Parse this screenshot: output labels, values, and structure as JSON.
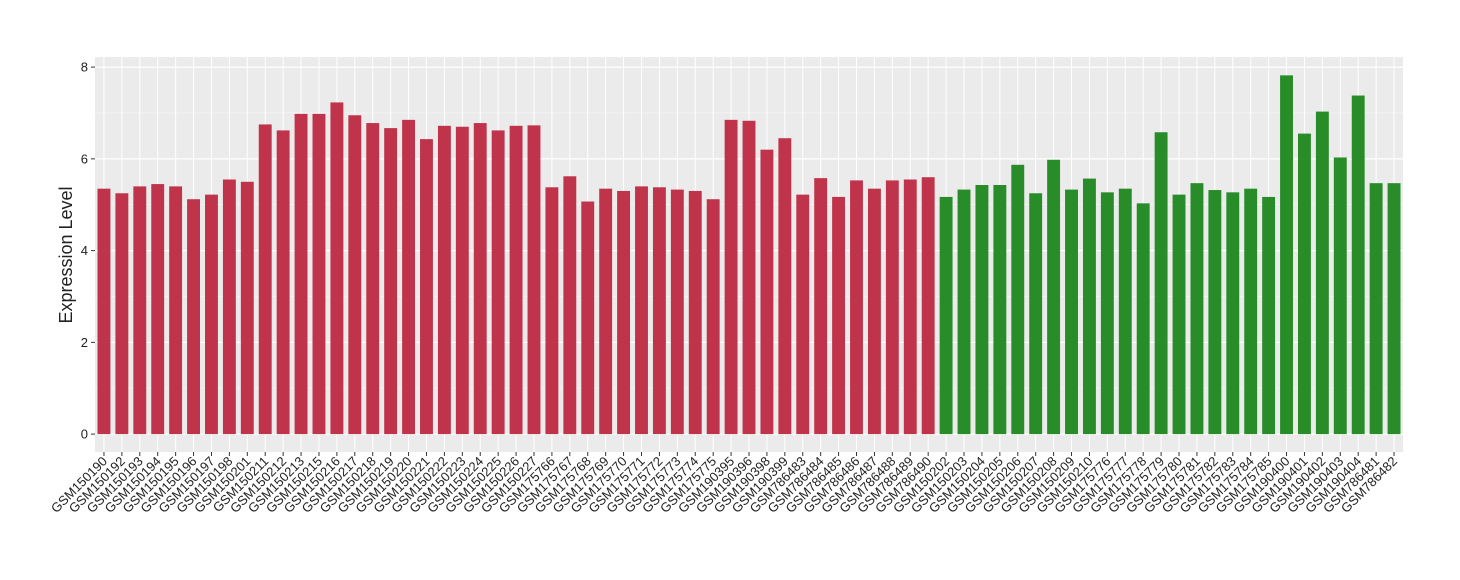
{
  "chart_data": {
    "type": "bar",
    "y_label": "Expression Level",
    "categories": [
      "GSM150190",
      "GSM150192",
      "GSM150193",
      "GSM150194",
      "GSM150195",
      "GSM150196",
      "GSM150197",
      "GSM150198",
      "GSM150201",
      "GSM150211",
      "GSM150212",
      "GSM150213",
      "GSM150215",
      "GSM150216",
      "GSM150217",
      "GSM150218",
      "GSM150219",
      "GSM150220",
      "GSM150221",
      "GSM150222",
      "GSM150223",
      "GSM150224",
      "GSM150225",
      "GSM150226",
      "GSM150227",
      "GSM175766",
      "GSM175767",
      "GSM175768",
      "GSM175769",
      "GSM175770",
      "GSM175771",
      "GSM175772",
      "GSM175773",
      "GSM175774",
      "GSM175775",
      "GSM190395",
      "GSM190396",
      "GSM190398",
      "GSM190399",
      "GSM786483",
      "GSM786484",
      "GSM786485",
      "GSM786486",
      "GSM786487",
      "GSM786488",
      "GSM786489",
      "GSM786490",
      "GSM150202",
      "GSM150203",
      "GSM150204",
      "GSM150205",
      "GSM150206",
      "GSM150207",
      "GSM150208",
      "GSM150209",
      "GSM150210",
      "GSM175776",
      "GSM175777",
      "GSM175778",
      "GSM175779",
      "GSM175780",
      "GSM175781",
      "GSM175782",
      "GSM175783",
      "GSM175784",
      "GSM175785",
      "GSM190400",
      "GSM190401",
      "GSM190402",
      "GSM190403",
      "GSM190404",
      "GSM786481",
      "GSM786482"
    ],
    "values": [
      5.35,
      5.25,
      5.4,
      5.45,
      5.4,
      5.12,
      5.22,
      5.55,
      5.5,
      6.75,
      6.62,
      6.98,
      6.98,
      7.23,
      6.95,
      6.78,
      6.67,
      6.85,
      6.43,
      6.72,
      6.7,
      6.78,
      6.62,
      6.72,
      6.73,
      5.38,
      5.62,
      5.07,
      5.35,
      5.3,
      5.4,
      5.38,
      5.33,
      5.3,
      5.12,
      6.85,
      6.83,
      6.2,
      6.45,
      5.22,
      5.58,
      5.17,
      5.53,
      5.35,
      5.53,
      5.55,
      5.6,
      5.17,
      5.33,
      5.43,
      5.43,
      5.87,
      5.25,
      5.98,
      5.33,
      5.57,
      5.27,
      5.35,
      5.03,
      6.58,
      5.22,
      5.47,
      5.32,
      5.27,
      5.35,
      5.17,
      7.82,
      6.55,
      7.03,
      6.03,
      7.38,
      5.47,
      5.47
    ],
    "colors": [
      "#c0344b",
      "#c0344b",
      "#c0344b",
      "#c0344b",
      "#c0344b",
      "#c0344b",
      "#c0344b",
      "#c0344b",
      "#c0344b",
      "#c0344b",
      "#c0344b",
      "#c0344b",
      "#c0344b",
      "#c0344b",
      "#c0344b",
      "#c0344b",
      "#c0344b",
      "#c0344b",
      "#c0344b",
      "#c0344b",
      "#c0344b",
      "#c0344b",
      "#c0344b",
      "#c0344b",
      "#c0344b",
      "#c0344b",
      "#c0344b",
      "#c0344b",
      "#c0344b",
      "#c0344b",
      "#c0344b",
      "#c0344b",
      "#c0344b",
      "#c0344b",
      "#c0344b",
      "#c0344b",
      "#c0344b",
      "#c0344b",
      "#c0344b",
      "#c0344b",
      "#c0344b",
      "#c0344b",
      "#c0344b",
      "#c0344b",
      "#c0344b",
      "#c0344b",
      "#c0344b",
      "#288c28",
      "#288c28",
      "#288c28",
      "#288c28",
      "#288c28",
      "#288c28",
      "#288c28",
      "#288c28",
      "#288c28",
      "#288c28",
      "#288c28",
      "#288c28",
      "#288c28",
      "#288c28",
      "#288c28",
      "#288c28",
      "#288c28",
      "#288c28",
      "#288c28",
      "#288c28",
      "#288c28",
      "#288c28",
      "#288c28",
      "#288c28",
      "#288c28",
      "#288c28"
    ],
    "ylim": [
      -0.39,
      8.22
    ],
    "yticks": [
      0,
      2,
      4,
      6,
      8
    ],
    "grid": true
  }
}
